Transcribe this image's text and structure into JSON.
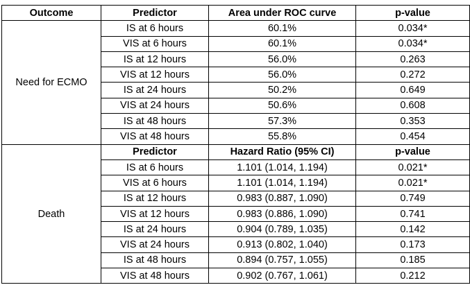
{
  "header": {
    "outcome": "Outcome",
    "predictor": "Predictor",
    "auc": "Area under ROC curve",
    "pvalue": "p-value"
  },
  "ecmo": {
    "label": "Need for ECMO",
    "rows": [
      {
        "predictor": "IS at 6 hours",
        "auc": "60.1%",
        "p": "0.034*"
      },
      {
        "predictor": "VIS at 6 hours",
        "auc": "60.1%",
        "p": "0.034*"
      },
      {
        "predictor": "IS at 12 hours",
        "auc": "56.0%",
        "p": "0.263"
      },
      {
        "predictor": "VIS at 12 hours",
        "auc": "56.0%",
        "p": "0.272"
      },
      {
        "predictor": "IS at 24 hours",
        "auc": "50.2%",
        "p": "0.649"
      },
      {
        "predictor": "VIS at 24 hours",
        "auc": "50.6%",
        "p": "0.608"
      },
      {
        "predictor": "IS at 48 hours",
        "auc": "57.3%",
        "p": "0.353"
      },
      {
        "predictor": "VIS at 48 hours",
        "auc": "55.8%",
        "p": "0.454"
      }
    ]
  },
  "death": {
    "label": "Death",
    "subheader": {
      "predictor": "Predictor",
      "hr": "Hazard Ratio (95% CI)",
      "pvalue": "p-value"
    },
    "rows": [
      {
        "predictor": "IS at 6 hours",
        "hr": "1.101 (1.014, 1.194)",
        "p": "0.021*"
      },
      {
        "predictor": "VIS at 6 hours",
        "hr": "1.101 (1.014, 1.194)",
        "p": "0.021*"
      },
      {
        "predictor": "IS at 12 hours",
        "hr": "0.983 (0.887, 1.090)",
        "p": "0.749"
      },
      {
        "predictor": "VIS at 12 hours",
        "hr": "0.983 (0.886, 1.090)",
        "p": "0.741"
      },
      {
        "predictor": "IS at 24 hours",
        "hr": "0.904 (0.789, 1.035)",
        "p": "0.142"
      },
      {
        "predictor": "VIS at 24 hours",
        "hr": "0.913 (0.802, 1.040)",
        "p": "0.173"
      },
      {
        "predictor": "IS at 48 hours",
        "hr": "0.894 (0.757, 1.055)",
        "p": "0.185"
      },
      {
        "predictor": "VIS at 48 hours",
        "hr": "0.902 (0.767, 1.061)",
        "p": "0.212"
      }
    ]
  }
}
